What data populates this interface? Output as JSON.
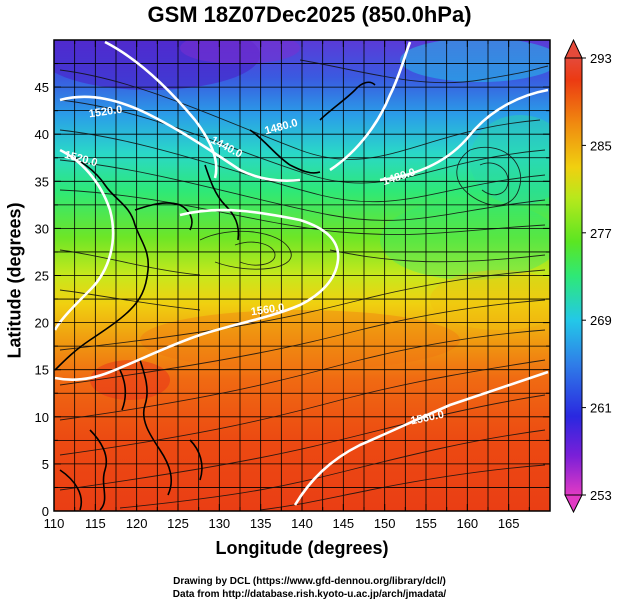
{
  "title": "GSM 18Z07Dec2025 (850.0hPa)",
  "xlabel": "Longitude (degrees)",
  "ylabel": "Latitude (degrees)",
  "credit_line1": "Drawing by DCL (https://www.gfd-dennou.org/library/dcl/)",
  "credit_line2": "Data from http://database.rish.kyoto-u.ac.jp/arch/jmadata/",
  "map": {
    "lon_range": [
      110,
      170
    ],
    "lat_range": [
      0,
      50
    ],
    "lon_ticks": [
      110,
      115,
      120,
      125,
      130,
      135,
      140,
      145,
      150,
      155,
      160,
      165
    ],
    "lat_ticks": [
      0,
      5,
      10,
      15,
      20,
      25,
      30,
      35,
      40,
      45
    ],
    "grid": true,
    "field": "temperature (K) shaded, geopotential height contours, streamlines"
  },
  "colorbar": {
    "ticks": [
      "293",
      "285",
      "277",
      "269",
      "261",
      "253"
    ],
    "min": 253,
    "max": 293,
    "stops": [
      "#e23ac4",
      "#7a1fd8",
      "#2a28e0",
      "#2f7ee8",
      "#23c8e8",
      "#2ee878",
      "#5be622",
      "#b8e81c",
      "#f0d010",
      "#f08a10",
      "#ec3a12",
      "#e54a3a"
    ]
  },
  "contours": [
    {
      "label": "1520.0"
    },
    {
      "label": "1440.0"
    },
    {
      "label": "1480.0"
    },
    {
      "label": "1480.0"
    },
    {
      "label": "1520.0"
    },
    {
      "label": "1560.0"
    },
    {
      "label": "1560.0"
    }
  ],
  "colors": {
    "background": "#ffffff",
    "contour": "#ffffff",
    "coast": "#000000",
    "grid": "#000000"
  }
}
